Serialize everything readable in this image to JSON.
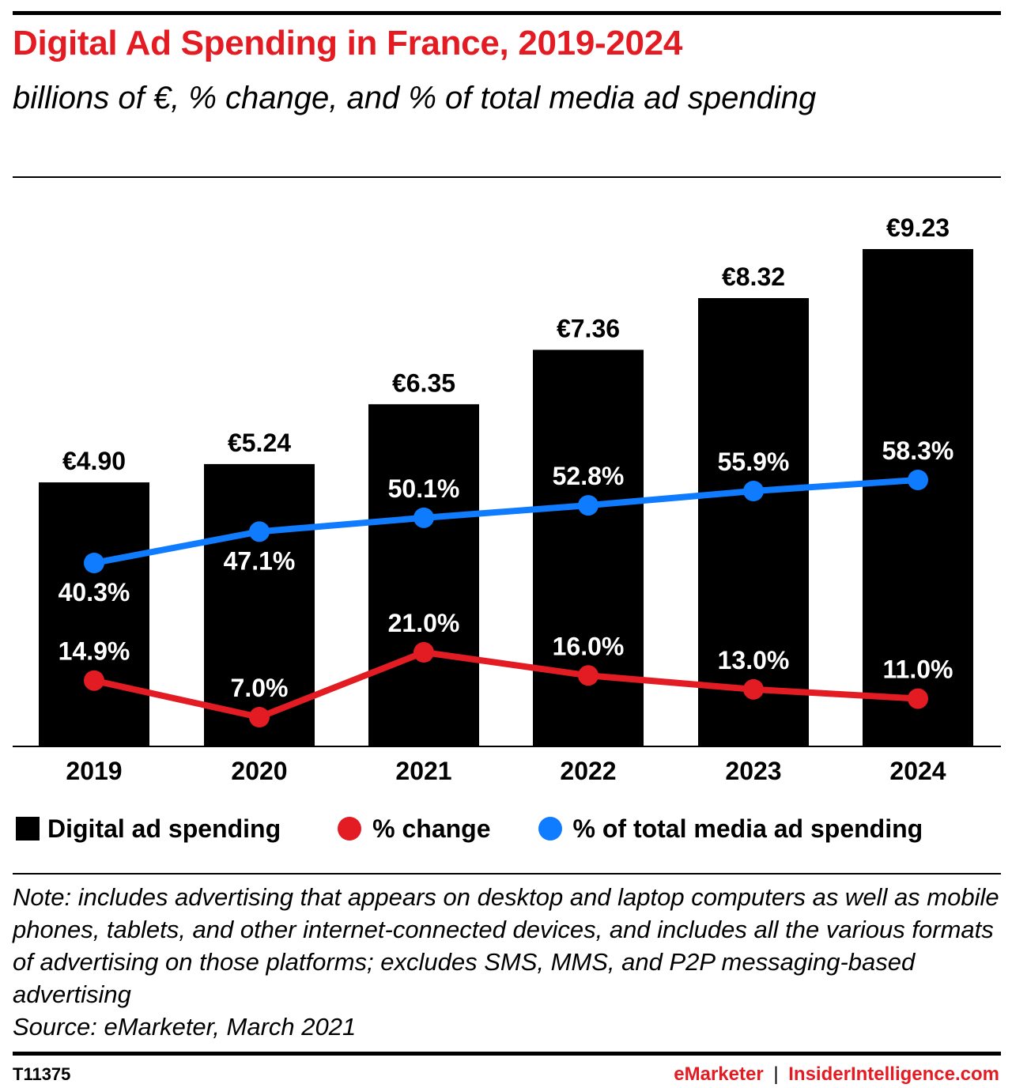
{
  "header": {
    "title": "Digital Ad Spending in France, 2019-2024",
    "subtitle": "billions of €, % change, and % of total media ad spending"
  },
  "colors": {
    "title": "#e31b23",
    "bars": "#000000",
    "change_line": "#e31b23",
    "share_line": "#0f7bff",
    "label_on_bar": "#ffffff"
  },
  "chart_data": {
    "type": "bar",
    "categories": [
      "2019",
      "2020",
      "2021",
      "2022",
      "2023",
      "2024"
    ],
    "series": [
      {
        "name": "Digital ad spending",
        "type": "bar",
        "values": [
          4.9,
          5.24,
          6.35,
          7.36,
          8.32,
          9.23
        ],
        "labels": [
          "€4.90",
          "€5.24",
          "€6.35",
          "€7.36",
          "€8.32",
          "€9.23"
        ]
      },
      {
        "name": "% change",
        "type": "line",
        "values": [
          14.9,
          7.0,
          21.0,
          16.0,
          13.0,
          11.0
        ],
        "labels": [
          "14.9%",
          "7.0%",
          "21.0%",
          "16.0%",
          "13.0%",
          "11.0%"
        ]
      },
      {
        "name": "% of total media ad spending",
        "type": "line",
        "values": [
          40.3,
          47.1,
          50.1,
          52.8,
          55.9,
          58.3
        ],
        "labels": [
          "40.3%",
          "47.1%",
          "50.1%",
          "52.8%",
          "55.9%",
          "58.3%"
        ]
      }
    ],
    "title": "Digital Ad Spending in France, 2019-2024",
    "xlabel": "",
    "ylabel": "",
    "grid": false,
    "legend": "bottom"
  },
  "legend": {
    "items": [
      {
        "label": "Digital ad spending",
        "marker": "square"
      },
      {
        "label": "% change",
        "marker": "dot"
      },
      {
        "label": "% of total media ad spending",
        "marker": "dot"
      }
    ]
  },
  "notes": {
    "note": "Note: includes advertising that appears on desktop and laptop computers as well as mobile phones, tablets, and other internet-connected devices, and includes all the various formats of advertising on those platforms; excludes SMS, MMS, and P2P messaging-based advertising",
    "source": "Source: eMarketer, March 2021"
  },
  "footer": {
    "id": "T11375",
    "brand_left": "eMarketer",
    "separator": "|",
    "brand_right": "InsiderIntelligence.com"
  }
}
